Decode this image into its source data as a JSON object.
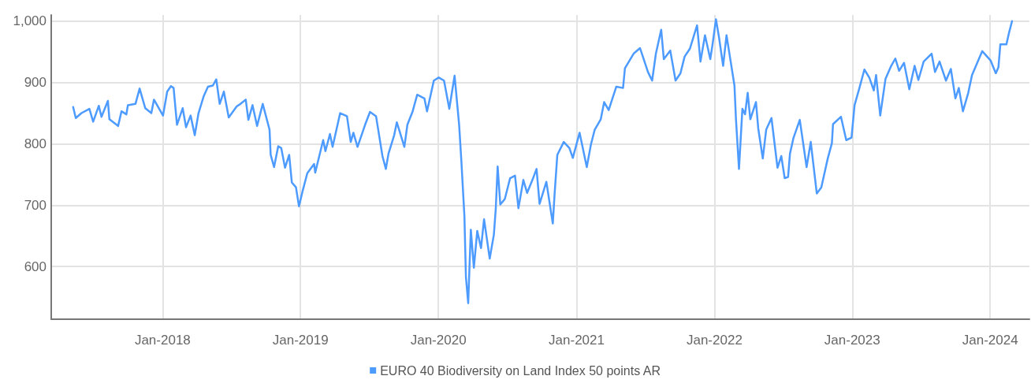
{
  "chart_data": {
    "type": "line",
    "x": [
      "2017-05-09",
      "2017-05-16",
      "2017-05-31",
      "2017-06-21",
      "2017-07-01",
      "2017-07-16",
      "2017-07-23",
      "2017-08-09",
      "2017-08-13",
      "2017-09-05",
      "2017-09-14",
      "2017-09-27",
      "2017-10-01",
      "2017-10-21",
      "2017-11-01",
      "2017-11-16",
      "2017-12-02",
      "2017-12-09",
      "2018-01-02",
      "2018-01-13",
      "2018-01-23",
      "2018-01-30",
      "2018-02-08",
      "2018-02-23",
      "2018-03-04",
      "2018-03-16",
      "2018-03-27",
      "2018-04-06",
      "2018-04-20",
      "2018-05-01",
      "2018-05-14",
      "2018-05-23",
      "2018-06-01",
      "2018-06-12",
      "2018-06-25",
      "2018-07-16",
      "2018-07-26",
      "2018-08-09",
      "2018-08-16",
      "2018-08-27",
      "2018-09-08",
      "2018-09-23",
      "2018-10-11",
      "2018-10-14",
      "2018-10-23",
      "2018-11-03",
      "2018-11-11",
      "2018-11-21",
      "2018-12-02",
      "2018-12-09",
      "2018-12-20",
      "2018-12-28",
      "2019-01-07",
      "2019-01-19",
      "2019-02-06",
      "2019-02-09",
      "2019-03-02",
      "2019-03-08",
      "2019-03-20",
      "2019-03-27",
      "2019-04-16",
      "2019-05-04",
      "2019-05-14",
      "2019-05-21",
      "2019-06-01",
      "2019-06-21",
      "2019-07-04",
      "2019-07-20",
      "2019-08-06",
      "2019-08-15",
      "2019-08-22",
      "2019-09-06",
      "2019-09-13",
      "2019-10-03",
      "2019-10-11",
      "2019-10-25",
      "2019-11-06",
      "2019-11-25",
      "2019-12-02",
      "2019-12-20",
      "2020-01-02",
      "2020-01-16",
      "2020-01-30",
      "2020-02-13",
      "2020-02-25",
      "2020-03-02",
      "2020-03-10",
      "2020-03-14",
      "2020-03-20",
      "2020-03-27",
      "2020-04-04",
      "2020-04-13",
      "2020-04-23",
      "2020-05-01",
      "2020-05-16",
      "2020-05-27",
      "2020-06-01",
      "2020-06-06",
      "2020-06-13",
      "2020-06-25",
      "2020-07-09",
      "2020-07-22",
      "2020-07-31",
      "2020-08-13",
      "2020-08-23",
      "2020-09-06",
      "2020-09-17",
      "2020-09-25",
      "2020-10-13",
      "2020-10-30",
      "2020-11-04",
      "2020-11-11",
      "2020-11-28",
      "2020-12-13",
      "2020-12-22",
      "2021-01-09",
      "2021-01-28",
      "2021-02-08",
      "2021-02-18",
      "2021-03-06",
      "2021-03-15",
      "2021-03-27",
      "2021-04-16",
      "2021-05-04",
      "2021-05-09",
      "2021-06-01",
      "2021-06-18",
      "2021-06-25",
      "2021-07-09",
      "2021-07-20",
      "2021-07-30",
      "2021-08-13",
      "2021-08-20",
      "2021-09-06",
      "2021-09-20",
      "2021-10-03",
      "2021-10-14",
      "2021-10-28",
      "2021-11-08",
      "2021-11-16",
      "2021-11-25",
      "2021-12-07",
      "2021-12-21",
      "2021-12-27",
      "2022-01-05",
      "2022-01-13",
      "2022-01-24",
      "2022-02-02",
      "2022-02-13",
      "2022-02-23",
      "2022-02-27",
      "2022-03-07",
      "2022-03-16",
      "2022-03-23",
      "2022-03-30",
      "2022-04-06",
      "2022-04-21",
      "2022-04-27",
      "2022-05-09",
      "2022-05-18",
      "2022-06-01",
      "2022-06-17",
      "2022-06-27",
      "2022-07-06",
      "2022-07-15",
      "2022-07-20",
      "2022-07-29",
      "2022-08-15",
      "2022-09-02",
      "2022-09-13",
      "2022-09-29",
      "2022-10-11",
      "2022-10-28",
      "2022-11-08",
      "2022-11-11",
      "2022-12-02",
      "2022-12-16",
      "2022-12-30",
      "2023-01-07",
      "2023-01-19",
      "2023-02-02",
      "2023-02-15",
      "2023-02-27",
      "2023-03-05",
      "2023-03-16",
      "2023-03-30",
      "2023-04-14",
      "2023-04-25",
      "2023-05-05",
      "2023-05-18",
      "2023-06-01",
      "2023-06-15",
      "2023-06-25",
      "2023-07-09",
      "2023-07-30",
      "2023-08-08",
      "2023-08-20",
      "2023-09-06",
      "2023-09-19",
      "2023-10-01",
      "2023-10-10",
      "2023-10-21",
      "2023-11-04",
      "2023-11-14",
      "2023-12-02",
      "2023-12-11",
      "2024-01-02",
      "2024-01-16",
      "2024-01-23",
      "2024-01-28",
      "2024-02-13",
      "2024-02-20",
      "2024-02-28"
    ],
    "series": [
      {
        "name": "EURO 40 Biodiversity on Land Index 50 points AR",
        "color": "#4d9bff",
        "values": [
          860,
          842,
          850,
          857,
          836,
          862,
          844,
          870,
          840,
          829,
          853,
          848,
          863,
          865,
          890,
          858,
          850,
          872,
          846,
          885,
          894,
          891,
          831,
          858,
          827,
          846,
          814,
          850,
          878,
          893,
          895,
          905,
          865,
          885,
          843,
          861,
          865,
          872,
          839,
          863,
          829,
          865,
          823,
          782,
          762,
          796,
          793,
          761,
          782,
          737,
          729,
          698,
          724,
          752,
          767,
          753,
          806,
          788,
          816,
          795,
          850,
          845,
          803,
          818,
          795,
          831,
          852,
          845,
          780,
          759,
          784,
          814,
          835,
          795,
          831,
          853,
          880,
          874,
          853,
          903,
          908,
          903,
          857,
          911,
          831,
          771,
          682,
          583,
          540,
          660,
          598,
          658,
          630,
          677,
          613,
          652,
          694,
          763,
          701,
          710,
          744,
          748,
          695,
          741,
          720,
          741,
          759,
          702,
          738,
          670,
          720,
          782,
          803,
          793,
          777,
          818,
          762,
          799,
          823,
          840,
          868,
          855,
          893,
          891,
          923,
          947,
          956,
          943,
          917,
          903,
          947,
          986,
          938,
          952,
          903,
          915,
          942,
          955,
          977,
          993,
          934,
          977,
          938,
          962,
          1003,
          974,
          927,
          977,
          934,
          895,
          840,
          759,
          857,
          848,
          883,
          840,
          868,
          825,
          776,
          823,
          842,
          761,
          780,
          744,
          746,
          784,
          809,
          839,
          762,
          803,
          719,
          729,
          776,
          801,
          832,
          844,
          806,
          810,
          863,
          889,
          921,
          908,
          887,
          912,
          846,
          906,
          927,
          939,
          919,
          932,
          889,
          927,
          904,
          934,
          947,
          917,
          934,
          903,
          922,
          874,
          891,
          853,
          883,
          912,
          938,
          951,
          936,
          915,
          925,
          962,
          962,
          981,
          1000
        ]
      }
    ],
    "xlim": [
      "2017-03-12",
      "2024-04-14"
    ],
    "xticks": [
      {
        "value": "2018-01-01",
        "label": "Jan-2018"
      },
      {
        "value": "2019-01-01",
        "label": "Jan-2019"
      },
      {
        "value": "2020-01-01",
        "label": "Jan-2020"
      },
      {
        "value": "2021-01-01",
        "label": "Jan-2021"
      },
      {
        "value": "2022-01-01",
        "label": "Jan-2022"
      },
      {
        "value": "2023-01-01",
        "label": "Jan-2023"
      },
      {
        "value": "2024-01-01",
        "label": "Jan-2024"
      }
    ],
    "ylim": [
      514,
      1010
    ],
    "yticks": [
      600,
      700,
      800,
      900,
      {
        "value": 1000,
        "label": "1,000"
      }
    ],
    "grid": true,
    "legend": "bottom",
    "marker": "none",
    "line_style": "solid"
  }
}
